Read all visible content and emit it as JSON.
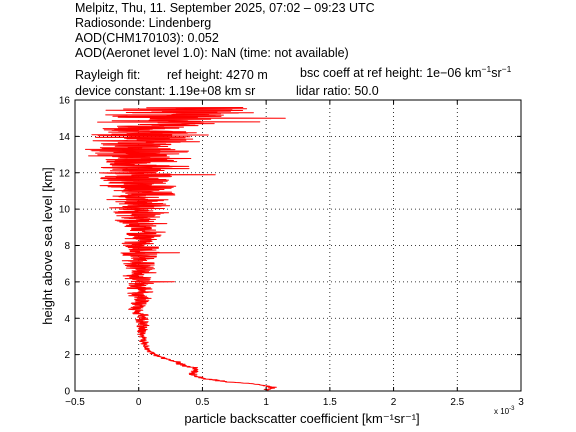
{
  "header": {
    "line1": "Melpitz, Thu, 11. September 2025, 07:02 – 09:23 UTC",
    "line2": "Radiosonde: Lindenberg",
    "line3": "AOD(CHM170103): 0.052",
    "line4": "AOD(Aeronet level 1.0): NaN   (time: not available)",
    "rayleigh_label": "Rayleigh fit:",
    "ref_height": "ref height: 4270 m",
    "bsc_coeff_prefix": "bsc coeff at ref height: 1e−06 km",
    "device_constant": "device constant: 1.19e+08 km sr",
    "lidar_ratio": "lidar ratio: 50.0"
  },
  "colors": {
    "profile": "#ff0000",
    "grid": "#000000",
    "axes": "#000000"
  },
  "chart_data": {
    "type": "line",
    "xlabel": "particle backscatter coefficient [km⁻¹sr⁻¹]",
    "ylabel": "height above sea level [km]",
    "x_exponent_label": "x 10",
    "x_exponent": "-3",
    "xlim": [
      -0.5,
      3.0
    ],
    "ylim": [
      0,
      16
    ],
    "x_ticks": [
      -0.5,
      0,
      0.5,
      1,
      1.5,
      2,
      2.5,
      3
    ],
    "x_tick_labels": [
      "−0.5",
      "0",
      "0.5",
      "1",
      "1.5",
      "2",
      "2.5",
      "3"
    ],
    "y_ticks": [
      0,
      2,
      4,
      6,
      8,
      10,
      12,
      14,
      16
    ],
    "y_tick_labels": [
      "0",
      "2",
      "4",
      "6",
      "8",
      "10",
      "12",
      "14",
      "16"
    ],
    "grid": true,
    "series": [
      {
        "anchors_height_km": [
          0.05,
          0.2,
          0.4,
          0.5,
          0.65,
          0.8,
          0.9,
          1.0,
          1.1,
          1.2,
          1.3,
          1.4,
          1.6,
          1.8,
          2.0,
          2.3,
          2.6,
          3.0,
          3.5,
          4.0,
          4.5,
          5.0,
          5.5,
          6.0,
          6.5,
          7.0,
          7.5,
          8.0,
          8.5,
          9.0,
          9.5,
          10.0,
          10.5,
          11.0,
          11.5,
          12.0,
          12.5,
          13.0,
          13.5,
          14.0,
          14.5,
          15.0,
          15.3,
          15.6
        ],
        "anchors_value": [
          1.0,
          1.05,
          0.9,
          0.7,
          0.55,
          0.45,
          0.42,
          0.43,
          0.45,
          0.45,
          0.42,
          0.35,
          0.3,
          0.2,
          0.12,
          0.07,
          0.04,
          0.03,
          0.02,
          0.02,
          0.0,
          0.02,
          0.0,
          0.02,
          0.0,
          0.0,
          0.02,
          0.0,
          0.02,
          0.02,
          0.0,
          0.0,
          0.02,
          0.02,
          0.0,
          0.0,
          0.05,
          0.0,
          0.0,
          0.05,
          0.1,
          0.2,
          0.3,
          0.3
        ],
        "anchors_noise": [
          0.03,
          0.03,
          0.03,
          0.03,
          0.03,
          0.03,
          0.03,
          0.03,
          0.03,
          0.03,
          0.03,
          0.03,
          0.03,
          0.02,
          0.02,
          0.02,
          0.03,
          0.03,
          0.04,
          0.05,
          0.06,
          0.07,
          0.08,
          0.09,
          0.1,
          0.11,
          0.12,
          0.13,
          0.14,
          0.15,
          0.17,
          0.18,
          0.2,
          0.22,
          0.25,
          0.28,
          0.3,
          0.32,
          0.34,
          0.35,
          0.36,
          0.38,
          0.45,
          0.4
        ],
        "peaks": [
          {
            "height_km": 0.15,
            "value": 1.05
          },
          {
            "height_km": 0.35,
            "value": 0.95
          },
          {
            "height_km": 6.0,
            "value": 0.28
          },
          {
            "height_km": 7.6,
            "value": 0.32
          },
          {
            "height_km": 11.9,
            "value": 0.6
          },
          {
            "height_km": 14.8,
            "value": 0.95
          },
          {
            "height_km": 15.0,
            "value": 1.15
          },
          {
            "height_km": 15.3,
            "value": 0.9
          },
          {
            "height_km": 15.5,
            "value": 0.68
          }
        ],
        "top_height_km": 15.6
      }
    ]
  }
}
